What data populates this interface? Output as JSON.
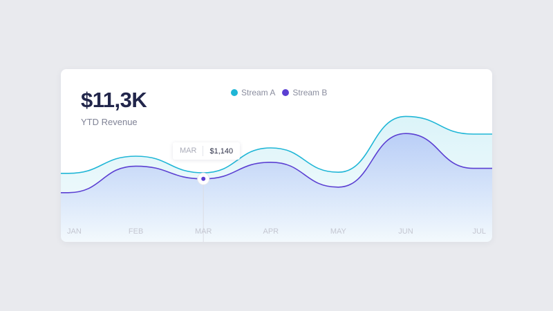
{
  "kpi": {
    "value": "$11,3K",
    "label": "YTD Revenue"
  },
  "tooltip": {
    "month": "MAR",
    "value": "$1,140"
  },
  "colors": {
    "stream_a": "#1fb6d6",
    "stream_b": "#5b3fd2",
    "axis_label": "#c4c6d0"
  },
  "chart_data": {
    "type": "area",
    "categories": [
      "JAN",
      "FEB",
      "MAR",
      "APR",
      "MAY",
      "JUN",
      "JUL"
    ],
    "series": [
      {
        "name": "Stream A",
        "values": [
          1240,
          1550,
          1250,
          1700,
          1260,
          2270,
          1950
        ]
      },
      {
        "name": "Stream B",
        "values": [
          890,
          1370,
          1140,
          1440,
          990,
          1960,
          1330
        ]
      }
    ],
    "ylim": [
      0,
      3000
    ],
    "highlight": {
      "category": "MAR",
      "series": "Stream B",
      "value": 1140
    },
    "grid": false,
    "legend_position": "top-center"
  }
}
